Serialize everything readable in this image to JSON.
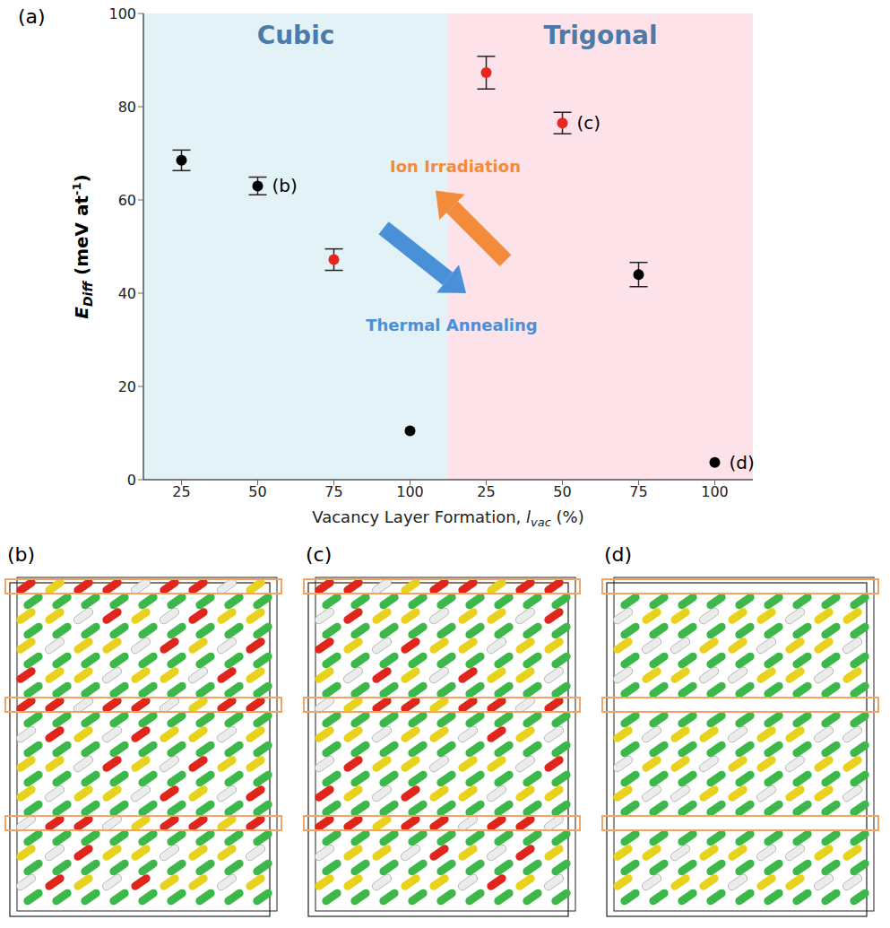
{
  "chart_data": {
    "type": "scatter",
    "panel_label": "(a)",
    "categories": [
      "25",
      "50",
      "75",
      "100",
      "25",
      "50",
      "75",
      "100"
    ],
    "values": [
      68.5,
      63,
      47.2,
      10.5,
      87.3,
      76.5,
      44,
      3.7
    ],
    "errors": [
      2.2,
      1.9,
      2.3,
      null,
      3.5,
      2.3,
      2.6,
      null
    ],
    "colors": [
      "#000000",
      "#000000",
      "#e8251f",
      "#000000",
      "#e8251f",
      "#e8251f",
      "#000000",
      "#000000"
    ],
    "point_labels": [
      null,
      "(b)",
      null,
      null,
      null,
      "(c)",
      null,
      "(d)"
    ],
    "ylim": [
      0,
      100
    ],
    "yticks": [
      0,
      20,
      40,
      60,
      80,
      100
    ],
    "xlabel": {
      "text": "Vacancy Layer Formation, ",
      "symbol": "l",
      "subscript": "vac",
      "unit": " (%)"
    },
    "ylabel": {
      "symbol": "E",
      "subscript": "Diff",
      "unit": " (meV at",
      "superscript": "-1",
      "close": ")"
    },
    "regions": [
      {
        "label": "Cubic",
        "color": "#e2f2f7"
      },
      {
        "label": "Trigonal",
        "color": "#fde2ea"
      }
    ],
    "annotations": [
      {
        "text": "Ion Irradiation",
        "color": "#f28c3a"
      },
      {
        "text": "Thermal Annealing",
        "color": "#4a90d9"
      }
    ]
  },
  "panels": [
    {
      "label": "(b)"
    },
    {
      "label": "(c)"
    },
    {
      "label": "(d)"
    }
  ]
}
